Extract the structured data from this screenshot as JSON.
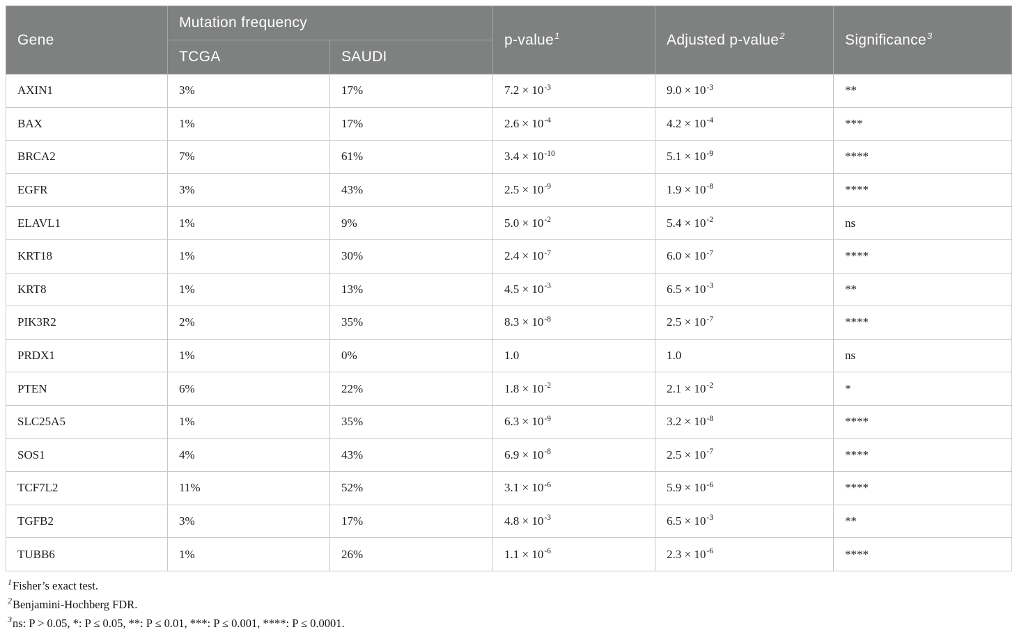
{
  "colors": {
    "header_bg": "#7f8180",
    "header_divider": "#a3a5a4",
    "body_border": "#c7c9c8",
    "body_text": "#1d1d1b",
    "header_text": "#ffffff"
  },
  "table": {
    "header": {
      "gene": "Gene",
      "mutation_frequency": "Mutation frequency",
      "tcga": "TCGA",
      "saudi": "SAUDI",
      "p_value": {
        "label": "p-value",
        "sup": "1"
      },
      "adjusted_p_value": {
        "label": "Adjusted p-value",
        "sup": "2"
      },
      "significance": {
        "label": "Significance",
        "sup": "3"
      }
    },
    "rows": [
      {
        "gene": "AXIN1",
        "tcga": "3%",
        "saudi": "17%",
        "p": {
          "base": "7.2 × 10",
          "exp": "-3"
        },
        "adj": {
          "base": "9.0 × 10",
          "exp": "-3"
        },
        "sig": "**"
      },
      {
        "gene": "BAX",
        "tcga": "1%",
        "saudi": "17%",
        "p": {
          "base": "2.6 × 10",
          "exp": "-4"
        },
        "adj": {
          "base": "4.2 × 10",
          "exp": "-4"
        },
        "sig": "***"
      },
      {
        "gene": "BRCA2",
        "tcga": "7%",
        "saudi": "61%",
        "p": {
          "base": "3.4 × 10",
          "exp": "-10"
        },
        "adj": {
          "base": "5.1 × 10",
          "exp": "-9"
        },
        "sig": "****"
      },
      {
        "gene": "EGFR",
        "tcga": "3%",
        "saudi": "43%",
        "p": {
          "base": "2.5 × 10",
          "exp": "-9"
        },
        "adj": {
          "base": "1.9 × 10",
          "exp": "-8"
        },
        "sig": "****"
      },
      {
        "gene": "ELAVL1",
        "tcga": "1%",
        "saudi": "9%",
        "p": {
          "base": "5.0 × 10",
          "exp": "-2"
        },
        "adj": {
          "base": "5.4 × 10",
          "exp": "-2"
        },
        "sig": "ns"
      },
      {
        "gene": "KRT18",
        "tcga": "1%",
        "saudi": "30%",
        "p": {
          "base": "2.4 × 10",
          "exp": "-7"
        },
        "adj": {
          "base": "6.0 × 10",
          "exp": "-7"
        },
        "sig": "****"
      },
      {
        "gene": "KRT8",
        "tcga": "1%",
        "saudi": "13%",
        "p": {
          "base": "4.5 × 10",
          "exp": "-3"
        },
        "adj": {
          "base": "6.5 × 10",
          "exp": "-3"
        },
        "sig": "**"
      },
      {
        "gene": "PIK3R2",
        "tcga": "2%",
        "saudi": "35%",
        "p": {
          "base": "8.3 × 10",
          "exp": "-8"
        },
        "adj": {
          "base": "2.5 × 10",
          "exp": "-7"
        },
        "sig": "****"
      },
      {
        "gene": "PRDX1",
        "tcga": "1%",
        "saudi": "0%",
        "p": {
          "base": "1.0",
          "exp": ""
        },
        "adj": {
          "base": "1.0",
          "exp": ""
        },
        "sig": "ns"
      },
      {
        "gene": "PTEN",
        "tcga": "6%",
        "saudi": "22%",
        "p": {
          "base": "1.8 × 10",
          "exp": "-2"
        },
        "adj": {
          "base": "2.1 × 10",
          "exp": "-2"
        },
        "sig": "*"
      },
      {
        "gene": "SLC25A5",
        "tcga": "1%",
        "saudi": "35%",
        "p": {
          "base": "6.3 × 10",
          "exp": "-9"
        },
        "adj": {
          "base": "3.2 × 10",
          "exp": "-8"
        },
        "sig": "****"
      },
      {
        "gene": "SOS1",
        "tcga": "4%",
        "saudi": "43%",
        "p": {
          "base": "6.9 × 10",
          "exp": "-8"
        },
        "adj": {
          "base": "2.5 × 10",
          "exp": "-7"
        },
        "sig": "****"
      },
      {
        "gene": "TCF7L2",
        "tcga": "11%",
        "saudi": "52%",
        "p": {
          "base": "3.1 × 10",
          "exp": "-6"
        },
        "adj": {
          "base": "5.9 × 10",
          "exp": "-6"
        },
        "sig": "****"
      },
      {
        "gene": "TGFB2",
        "tcga": "3%",
        "saudi": "17%",
        "p": {
          "base": "4.8 × 10",
          "exp": "-3"
        },
        "adj": {
          "base": "6.5 × 10",
          "exp": "-3"
        },
        "sig": "**"
      },
      {
        "gene": "TUBB6",
        "tcga": "1%",
        "saudi": "26%",
        "p": {
          "base": "1.1 × 10",
          "exp": "-6"
        },
        "adj": {
          "base": "2.3 × 10",
          "exp": "-6"
        },
        "sig": "****"
      }
    ]
  },
  "footnotes": [
    {
      "sup": "1",
      "text": "Fisher’s exact test."
    },
    {
      "sup": "2",
      "text": "Benjamini-Hochberg FDR."
    },
    {
      "sup": "3",
      "text": "ns: P > 0.05, *: P ≤ 0.05, **: P ≤ 0.01, ***: P ≤ 0.001, ****: P ≤ 0.0001."
    }
  ]
}
